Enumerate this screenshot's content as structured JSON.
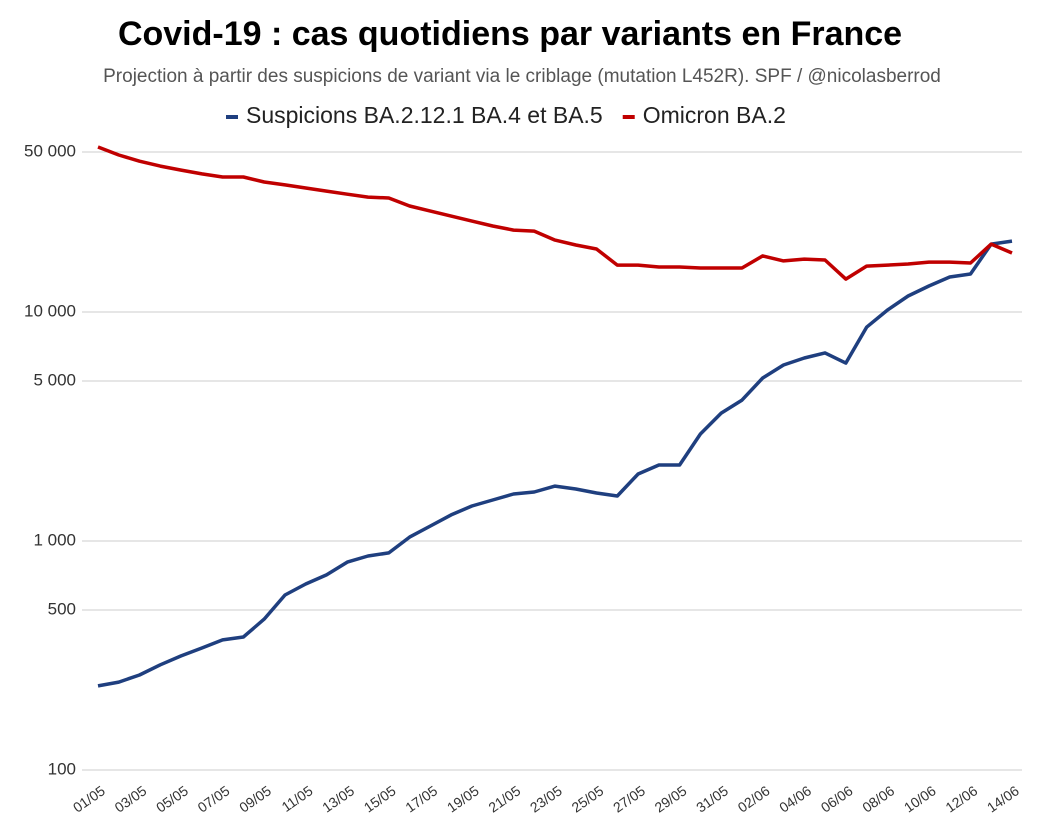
{
  "chart_data": {
    "type": "line",
    "title": "Covid-19 : cas quotidiens par variants en France",
    "subtitle": "Projection à partir des suspicions de variant via le criblage (mutation L452R). SPF / @nicolasberrod",
    "categories": [
      "01/05",
      null,
      "03/05",
      null,
      "05/05",
      null,
      "07/05",
      null,
      "09/05",
      null,
      "11/05",
      null,
      "13/05",
      null,
      "15/05",
      null,
      "17/05",
      null,
      "19/05",
      null,
      "21/05",
      null,
      "23/05",
      null,
      "25/05",
      null,
      "27/05",
      null,
      "29/05",
      null,
      "31/05",
      null,
      "02/06",
      null,
      "04/06",
      null,
      "06/06",
      null,
      "08/06",
      null,
      "10/06",
      null,
      "12/06",
      null,
      "14/06"
    ],
    "series": [
      {
        "name": "Suspicions BA.2.12.1 BA.4 et BA.5",
        "color": "#1f3f7f",
        "values": [
          233,
          242,
          260,
          288,
          315,
          341,
          370,
          381,
          456,
          581,
          649,
          711,
          809,
          860,
          887,
          1040,
          1163,
          1300,
          1422,
          1511,
          1604,
          1637,
          1738,
          1687,
          1621,
          1573,
          1963,
          2148,
          2148,
          2933,
          3620,
          4127,
          5150,
          5870,
          6300,
          6630,
          5985,
          8590,
          10200,
          11750,
          13000,
          14230,
          14660,
          19800,
          20400
        ]
      },
      {
        "name": "Omicron BA.2",
        "color": "#c00000",
        "values": [
          52600,
          48500,
          45600,
          43400,
          41700,
          40100,
          38900,
          38900,
          36990,
          35900,
          34800,
          33740,
          32700,
          31770,
          31470,
          29040,
          27600,
          26240,
          24950,
          23760,
          22800,
          22570,
          20620,
          19620,
          18850,
          16040,
          16040,
          15730,
          15730,
          15570,
          15570,
          15570,
          17580,
          16720,
          17030,
          16870,
          13930,
          15870,
          16040,
          16210,
          16530,
          16530,
          16370,
          19800,
          18110
        ]
      }
    ],
    "ylim": [
      100,
      50000
    ],
    "yticks": [
      100,
      500,
      {
        "value": 1000,
        "label": "1 000"
      },
      {
        "value": 5000,
        "label": "5 000"
      },
      {
        "value": 10000,
        "label": "10 000"
      },
      {
        "value": 50000,
        "label": "50 000"
      }
    ],
    "log_y": true,
    "grid": true,
    "legend": "top"
  }
}
